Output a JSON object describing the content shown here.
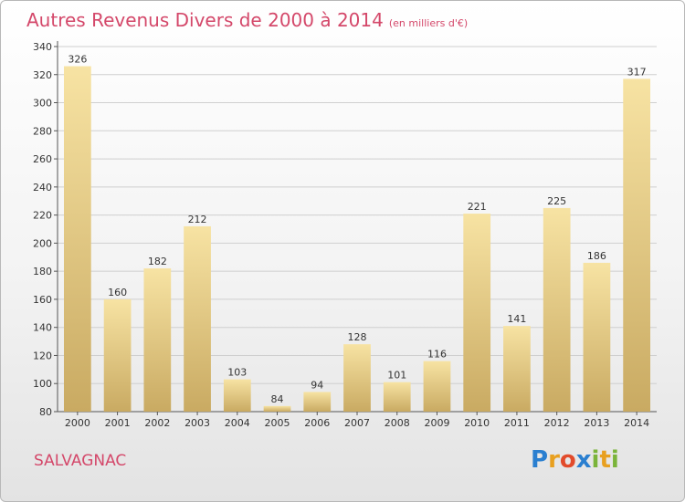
{
  "title": "Autres Revenus Divers de 2000 à 2014",
  "subtitle": "(en milliers d'€)",
  "commune": "SALVAGNAC",
  "logo": {
    "letters": [
      "P",
      "r",
      "o",
      "x",
      "i",
      "t",
      "i"
    ],
    "colors": [
      "#2a7fd0",
      "#e8a020",
      "#e24b2b",
      "#2a7fd0",
      "#7ab43a",
      "#e8a020",
      "#7ab43a"
    ]
  },
  "colors": {
    "bar_top": "#f7e3a3",
    "bar_bottom": "#c9aa62",
    "accent": "#d4486a"
  },
  "chart_data": {
    "type": "bar",
    "title": "Autres Revenus Divers de 2000 à 2014",
    "subtitle": "(en milliers d'€)",
    "categories": [
      "2000",
      "2001",
      "2002",
      "2003",
      "2004",
      "2005",
      "2006",
      "2007",
      "2008",
      "2009",
      "2010",
      "2011",
      "2012",
      "2013",
      "2014"
    ],
    "values": [
      326,
      160,
      182,
      212,
      103,
      84,
      94,
      128,
      101,
      116,
      221,
      141,
      225,
      186,
      317
    ],
    "ylim": [
      80,
      340
    ],
    "yticks": [
      80,
      100,
      120,
      140,
      160,
      180,
      200,
      220,
      240,
      260,
      280,
      300,
      320,
      340
    ],
    "grid": true,
    "legend": "none"
  }
}
